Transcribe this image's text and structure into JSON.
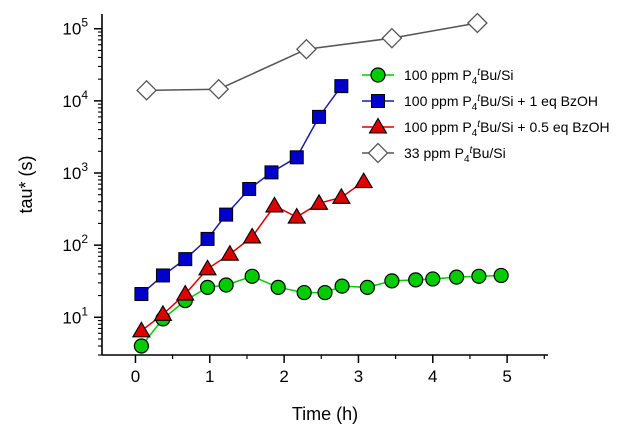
{
  "chart_data": {
    "type": "line",
    "xlabel": "Time (h)",
    "ylabel": "tau* (s)",
    "xscale": "linear",
    "yscale": "log",
    "xlim": [
      -0.45,
      5.55
    ],
    "ylim": [
      3.0,
      160000
    ],
    "x_ticks": [
      0,
      1,
      2,
      3,
      4,
      5
    ],
    "x_tick_labels": [
      "0",
      "1",
      "2",
      "3",
      "4",
      "5"
    ],
    "y_ticks": [
      10,
      100,
      1000,
      10000,
      100000
    ],
    "y_tick_labels": [
      {
        "base": "10",
        "exp": "1"
      },
      {
        "base": "10",
        "exp": "2"
      },
      {
        "base": "10",
        "exp": "3"
      },
      {
        "base": "10",
        "exp": "4"
      },
      {
        "base": "10",
        "exp": "5"
      }
    ],
    "grid": false,
    "legend_position": "right",
    "series": [
      {
        "name": "100 ppm P4tBu/Si",
        "label_parts": {
          "pre": "100 ppm P",
          "sub": "4",
          "sup": "t",
          "post": "Bu/Si"
        },
        "color": "#00cc00",
        "line_color": "#00cc00",
        "marker": "circle",
        "x": [
          0.08,
          0.37,
          0.67,
          0.97,
          1.22,
          1.57,
          1.92,
          2.27,
          2.55,
          2.78,
          3.12,
          3.45,
          3.77,
          4.0,
          4.32,
          4.62,
          4.92
        ],
        "y": [
          4,
          9.5,
          17,
          26,
          28,
          37,
          26,
          22,
          22,
          27,
          26,
          32,
          33,
          34,
          36,
          37,
          38
        ]
      },
      {
        "name": "100 ppm P4tBu/Si + 1 eq BzOH",
        "label_parts": {
          "pre": "100 ppm P",
          "sub": "4",
          "sup": "t",
          "post": "Bu/Si + 1 eq BzOH"
        },
        "color": "#0000cc",
        "line_color": "#1a1aaa",
        "marker": "square",
        "x": [
          0.08,
          0.37,
          0.67,
          0.97,
          1.22,
          1.53,
          1.83,
          2.17,
          2.47,
          2.77
        ],
        "y": [
          21,
          38,
          64,
          122,
          265,
          600,
          1020,
          1650,
          6000,
          16000
        ]
      },
      {
        "name": "100 ppm P4tBu/Si + 0.5 eq BzOH",
        "label_parts": {
          "pre": "100 ppm P",
          "sub": "4",
          "sup": "t",
          "post": "Bu/Si + 0.5 eq BzOH"
        },
        "color": "#dd0000",
        "line_color": "#dd0000",
        "marker": "triangle",
        "x": [
          0.08,
          0.37,
          0.67,
          0.97,
          1.27,
          1.57,
          1.87,
          2.17,
          2.47,
          2.77,
          3.07
        ],
        "y": [
          6.5,
          11,
          21,
          47,
          75,
          130,
          350,
          245,
          380,
          460,
          760
        ]
      },
      {
        "name": "33 ppm P4tBu/Si",
        "label_parts": {
          "pre": "33 ppm P",
          "sub": "4",
          "sup": "t",
          "post": "Bu/Si"
        },
        "color": "#ffffff",
        "line_color": "#555555",
        "marker": "diamond",
        "x": [
          0.15,
          1.12,
          2.3,
          3.45,
          4.6
        ],
        "y": [
          14000,
          14500,
          52000,
          74000,
          120000
        ]
      }
    ]
  }
}
